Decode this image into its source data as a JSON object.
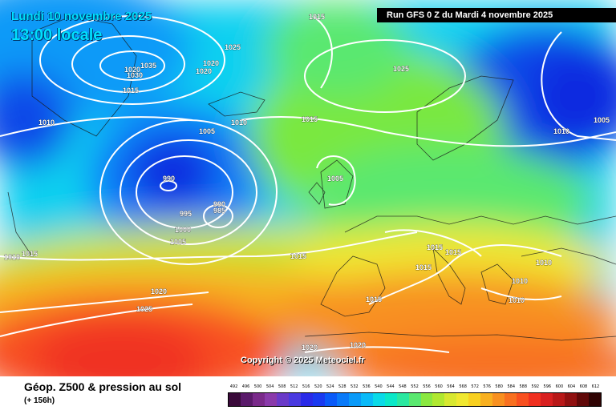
{
  "header": {
    "date_label": "Lundi 10 novembre 2025",
    "time_label": "13:00 locale",
    "run_label": "Run GFS 0 Z du Mardi 4 novembre 2025"
  },
  "copyright": "Copyright © 2025 Meteociel.fr",
  "legend": {
    "title": "Géop. Z500 & pression au sol",
    "subtitle": "(+ 156h)",
    "scale_values": [
      "492",
      "496",
      "500",
      "504",
      "508",
      "512",
      "516",
      "520",
      "524",
      "528",
      "532",
      "536",
      "540",
      "544",
      "548",
      "552",
      "556",
      "560",
      "564",
      "568",
      "572",
      "576",
      "580",
      "584",
      "588",
      "592",
      "596",
      "600",
      "604",
      "608",
      "612"
    ],
    "scale_colors": [
      "#3a0a3a",
      "#5a1a6a",
      "#7a2a8a",
      "#8a3aaa",
      "#6a3ac8",
      "#4a3ae0",
      "#2a2ae8",
      "#1a3af0",
      "#0a5af8",
      "#0a7af8",
      "#0a9af8",
      "#0abaf8",
      "#0adae8",
      "#0ae8c8",
      "#2ae8a0",
      "#5ae870",
      "#8ae840",
      "#b0e830",
      "#d8e830",
      "#f0e830",
      "#f8d020",
      "#f8b020",
      "#f89020",
      "#f87020",
      "#f85020",
      "#f03020",
      "#d82020",
      "#b81818",
      "#901010",
      "#600808",
      "#300404"
    ],
    "colors": {
      "deep_blue": "#0a2ae0",
      "blue": "#0a7af8",
      "cyan": "#0ad0f0",
      "green": "#7ae840",
      "yellow": "#f0e830",
      "orange": "#f89020",
      "red": "#f03020"
    }
  },
  "pressure_labels": [
    "1015",
    "1020",
    "1035",
    "1030",
    "1025",
    "1020",
    "1020",
    "1015",
    "1025",
    "1020",
    "1010",
    "1005",
    "1010",
    "1015",
    "1005",
    "1010",
    "1005",
    "990",
    "990",
    "995",
    "985",
    "1000",
    "1005",
    "1010",
    "1015",
    "1015",
    "1015",
    "1015",
    "1010",
    "1010",
    "1010",
    "1020",
    "1025",
    "1015",
    "1020",
    "1015"
  ]
}
